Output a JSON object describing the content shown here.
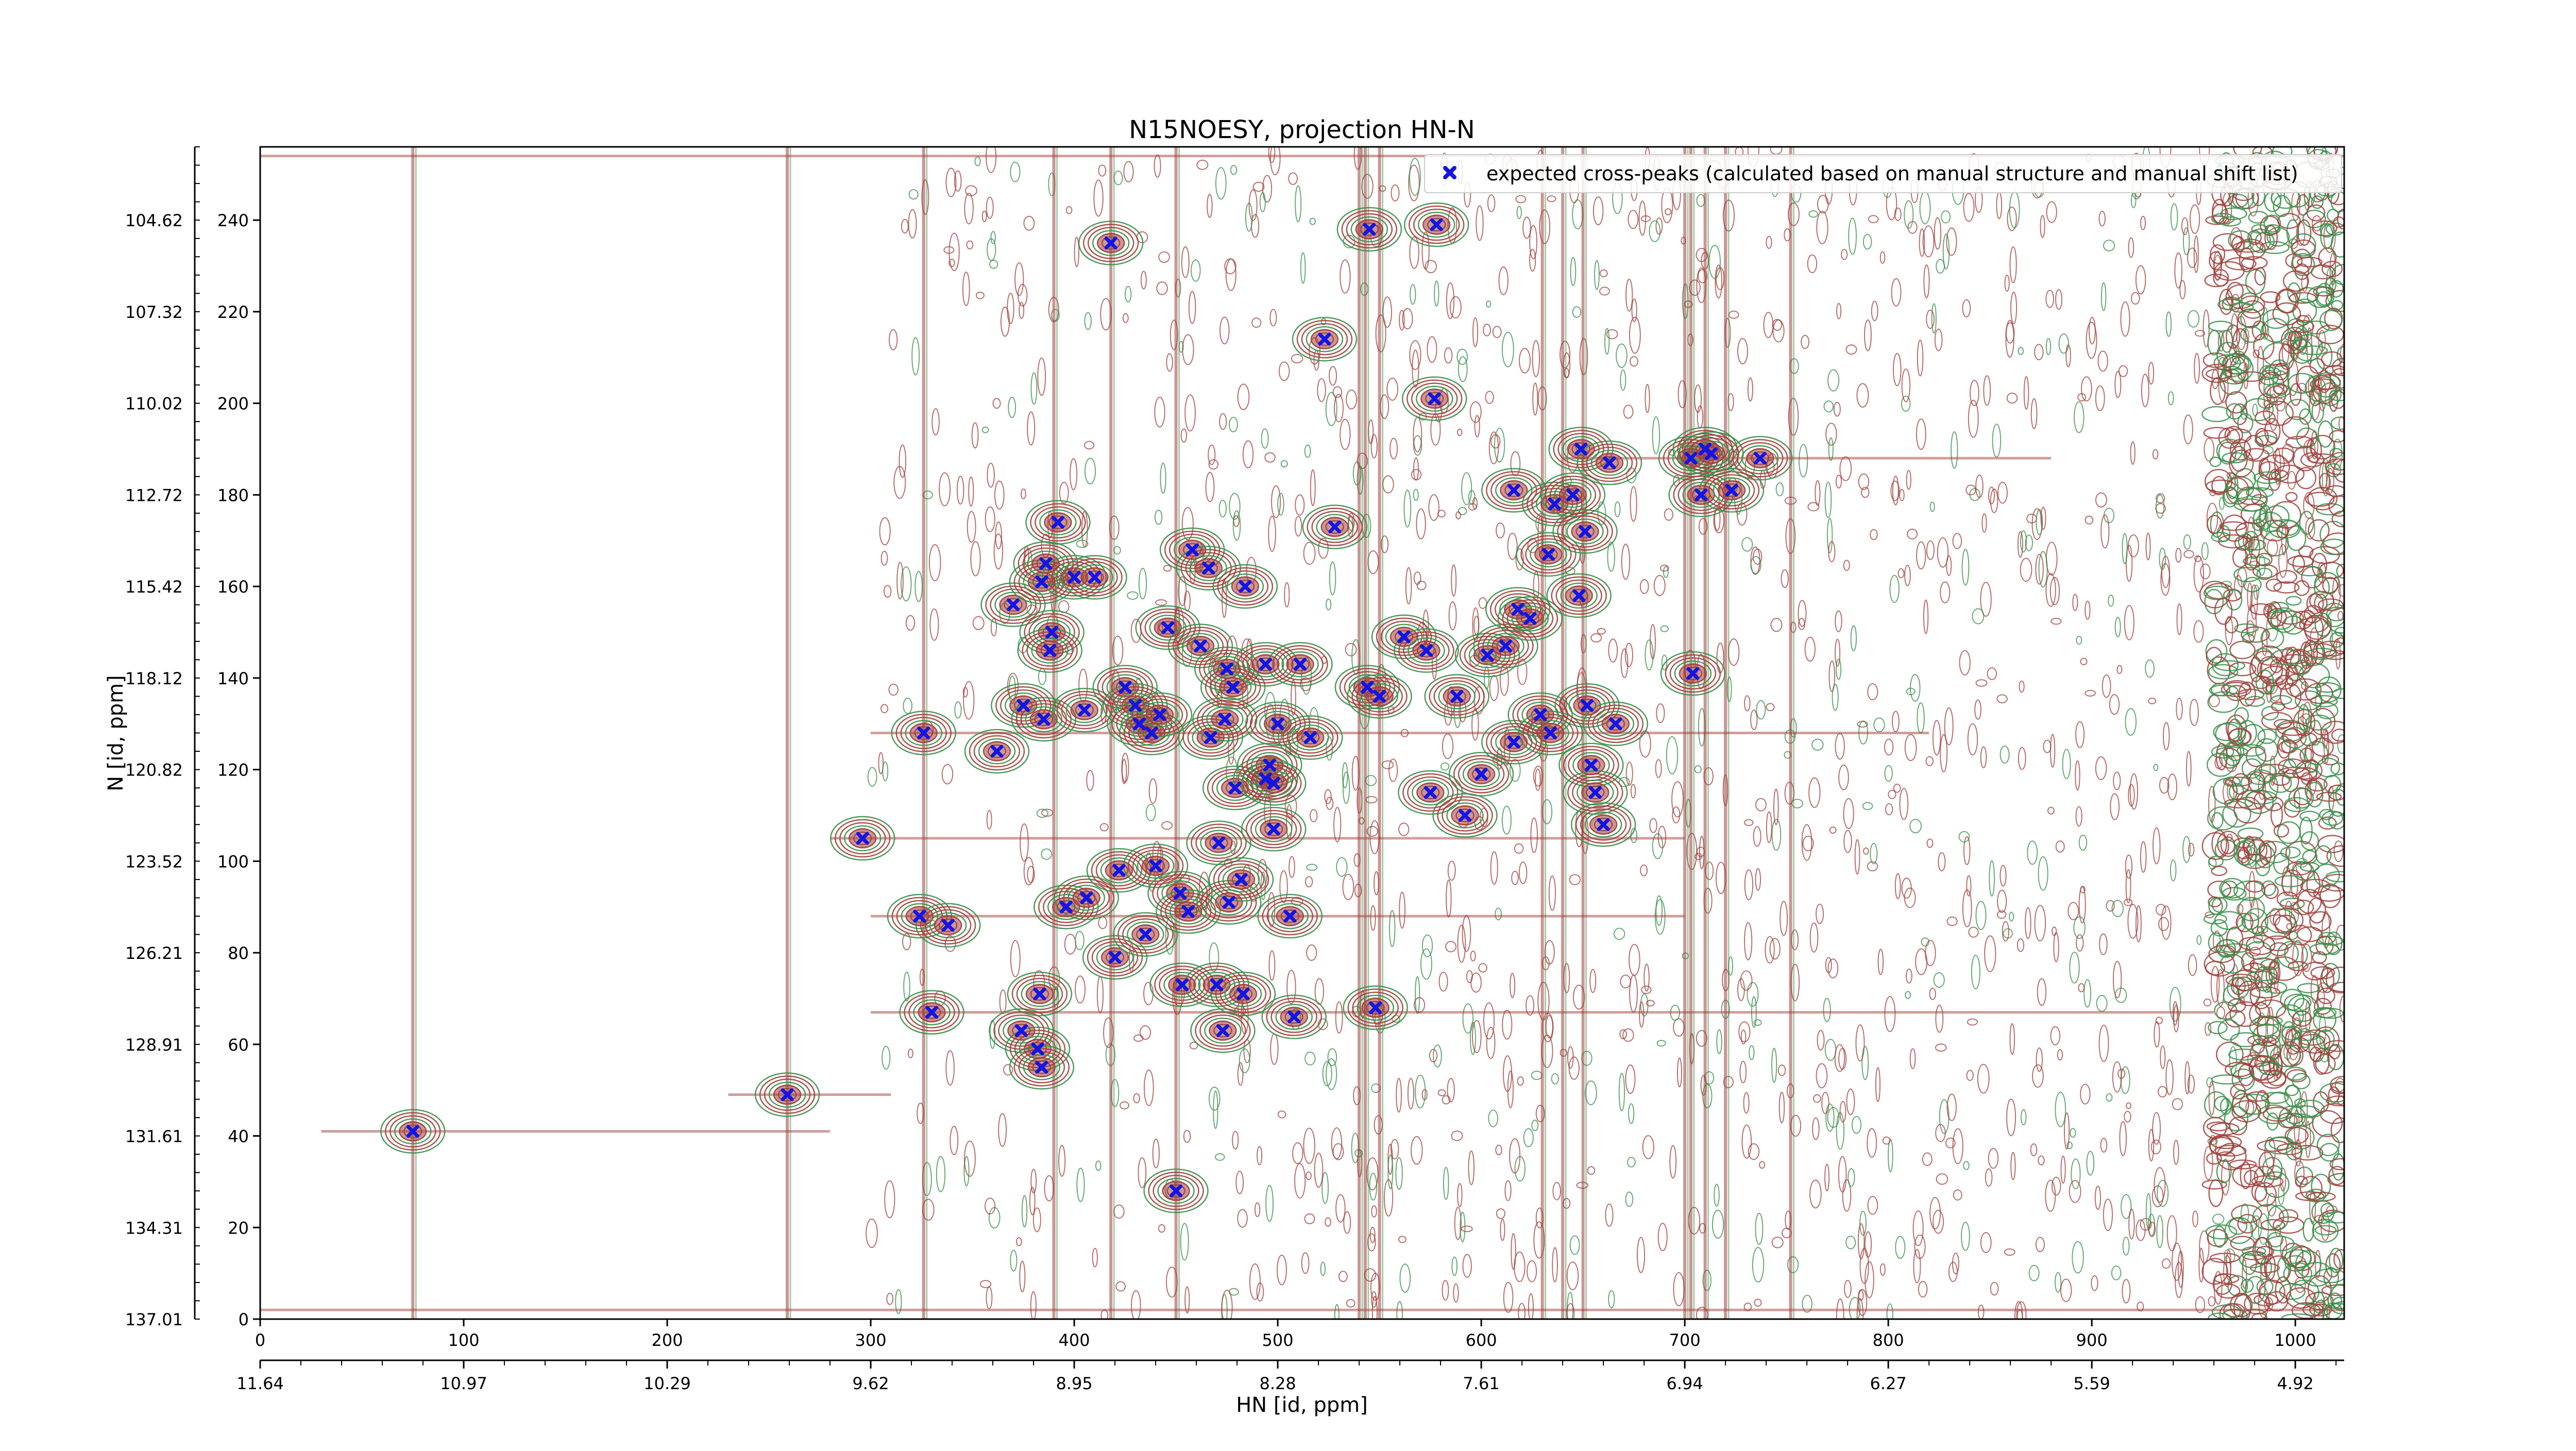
{
  "chart_data": {
    "type": "scatter",
    "title": "N15NOESY, projection HN-N",
    "xlabel": "HN [id, ppm]",
    "ylabel": "N [id, ppm]",
    "xlim": [
      0,
      1024
    ],
    "ylim": [
      0,
      256
    ],
    "grid": false,
    "legend_position": "top-right",
    "x_ticks_index": [
      "0",
      "100",
      "200",
      "300",
      "400",
      "500",
      "600",
      "700",
      "800",
      "900",
      "1000"
    ],
    "x_ticks_ppm": [
      "11.64",
      "10.97",
      "10.29",
      "9.62",
      "8.95",
      "8.28",
      "7.61",
      "6.94",
      "6.27",
      "5.59",
      "4.92"
    ],
    "y_ticks_index": [
      "0",
      "20",
      "40",
      "60",
      "80",
      "100",
      "120",
      "140",
      "160",
      "180",
      "200",
      "220",
      "240"
    ],
    "y_ticks_ppm": [
      "137.01",
      "134.31",
      "131.61",
      "128.91",
      "126.21",
      "123.52",
      "120.82",
      "118.12",
      "115.42",
      "112.72",
      "110.02",
      "107.32",
      "104.62"
    ],
    "colors": {
      "positive_contour": "#a0413c",
      "negative_contour": "#3a8f4a",
      "marker": "#1414e6"
    },
    "series": [
      {
        "name": "expected cross-peaks (calculated based on manual structure and manual shift list)",
        "marker": "x",
        "points": [
          [
            75,
            41
          ],
          [
            259,
            49
          ],
          [
            296,
            105
          ],
          [
            326,
            128
          ],
          [
            324,
            88
          ],
          [
            338,
            86
          ],
          [
            330,
            67
          ],
          [
            362,
            124
          ],
          [
            370,
            156
          ],
          [
            375,
            134
          ],
          [
            384,
            161
          ],
          [
            386,
            165
          ],
          [
            392,
            174
          ],
          [
            389,
            150
          ],
          [
            388,
            146
          ],
          [
            385,
            131
          ],
          [
            374,
            63
          ],
          [
            382,
            59
          ],
          [
            384,
            55
          ],
          [
            383,
            71
          ],
          [
            400,
            162
          ],
          [
            410,
            162
          ],
          [
            396,
            90
          ],
          [
            406,
            92
          ],
          [
            405,
            133
          ],
          [
            420,
            79
          ],
          [
            422,
            98
          ],
          [
            425,
            138
          ],
          [
            430,
            134
          ],
          [
            432,
            130
          ],
          [
            435,
            84
          ],
          [
            438,
            128
          ],
          [
            440,
            99
          ],
          [
            442,
            132
          ],
          [
            452,
            93
          ],
          [
            446,
            151
          ],
          [
            453,
            73
          ],
          [
            450,
            28
          ],
          [
            456,
            89
          ],
          [
            458,
            168
          ],
          [
            462,
            147
          ],
          [
            466,
            164
          ],
          [
            467,
            127
          ],
          [
            470,
            73
          ],
          [
            473,
            63
          ],
          [
            471,
            104
          ],
          [
            474,
            131
          ],
          [
            475,
            142
          ],
          [
            476,
            91
          ],
          [
            478,
            138
          ],
          [
            479,
            116
          ],
          [
            482,
            96
          ],
          [
            484,
            160
          ],
          [
            483,
            71
          ],
          [
            494,
            118
          ],
          [
            494,
            143
          ],
          [
            496,
            121
          ],
          [
            498,
            107
          ],
          [
            498,
            117
          ],
          [
            500,
            130
          ],
          [
            506,
            88
          ],
          [
            508,
            66
          ],
          [
            511,
            143
          ],
          [
            516,
            127
          ],
          [
            523,
            214
          ],
          [
            528,
            173
          ],
          [
            544,
            138
          ],
          [
            548,
            68
          ],
          [
            550,
            136
          ],
          [
            562,
            149
          ],
          [
            573,
            146
          ],
          [
            575,
            115
          ],
          [
            577,
            201
          ],
          [
            578,
            239
          ],
          [
            588,
            136
          ],
          [
            592,
            110
          ],
          [
            600,
            119
          ],
          [
            603,
            145
          ],
          [
            612,
            147
          ],
          [
            616,
            126
          ],
          [
            616,
            181
          ],
          [
            618,
            155
          ],
          [
            624,
            153
          ],
          [
            629,
            132
          ],
          [
            633,
            167
          ],
          [
            634,
            128
          ],
          [
            636,
            178
          ],
          [
            645,
            180
          ],
          [
            648,
            158
          ],
          [
            649,
            190
          ],
          [
            651,
            172
          ],
          [
            652,
            134
          ],
          [
            654,
            121
          ],
          [
            656,
            115
          ],
          [
            660,
            108
          ],
          [
            663,
            187
          ],
          [
            666,
            130
          ],
          [
            703,
            188
          ],
          [
            704,
            141
          ],
          [
            708,
            180
          ],
          [
            710,
            190
          ],
          [
            713,
            189
          ],
          [
            723,
            181
          ],
          [
            737,
            188
          ],
          [
            545,
            238
          ],
          [
            418,
            235
          ]
        ]
      }
    ]
  }
}
